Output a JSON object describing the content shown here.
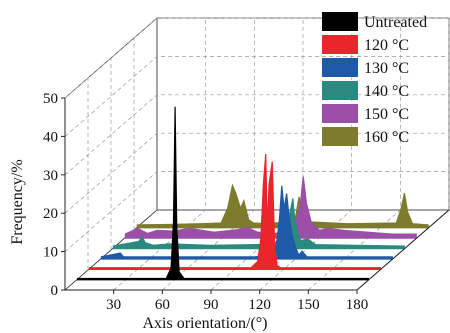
{
  "chart_data": {
    "type": "area",
    "subtype": "3d-waterfall",
    "xlabel": "Axis orientation/(°)",
    "ylabel": "Frequency/%",
    "xlim": [
      0,
      180
    ],
    "ylim": [
      0,
      50
    ],
    "xticks": [
      30,
      60,
      90,
      120,
      150,
      180
    ],
    "yticks": [
      0,
      10,
      20,
      30,
      40,
      50
    ],
    "grid": true,
    "legend_position": "top-right",
    "series": [
      {
        "name": "Untreated",
        "color": "#000000",
        "points": [
          [
            0,
            0.3
          ],
          [
            55,
            0.3
          ],
          [
            58,
            3
          ],
          [
            59.5,
            15
          ],
          [
            60.5,
            45
          ],
          [
            61.5,
            14
          ],
          [
            63,
            2
          ],
          [
            66,
            0.3
          ],
          [
            180,
            0.3
          ]
        ]
      },
      {
        "name": "120 °C",
        "color": "#e8262b",
        "points": [
          [
            0,
            0.4
          ],
          [
            100,
            0.4
          ],
          [
            104,
            2
          ],
          [
            106,
            8
          ],
          [
            107.5,
            22
          ],
          [
            109,
            30
          ],
          [
            110,
            10
          ],
          [
            111,
            22
          ],
          [
            113,
            28
          ],
          [
            114.5,
            6
          ],
          [
            116,
            1
          ],
          [
            118,
            0.4
          ],
          [
            180,
            0.4
          ]
        ]
      },
      {
        "name": "130 °C",
        "color": "#1e5aa8",
        "points": [
          [
            0,
            0.5
          ],
          [
            12,
            1.5
          ],
          [
            14,
            0.5
          ],
          [
            95,
            0.5
          ],
          [
            104,
            1
          ],
          [
            108,
            3
          ],
          [
            110,
            10
          ],
          [
            111.5,
            19
          ],
          [
            113,
            13
          ],
          [
            114.5,
            17
          ],
          [
            116,
            11
          ],
          [
            118,
            6
          ],
          [
            120,
            3
          ],
          [
            122,
            1
          ],
          [
            124,
            2
          ],
          [
            127,
            0.5
          ],
          [
            180,
            0.5
          ]
        ]
      },
      {
        "name": "140 °C",
        "color": "#2a8a80",
        "points": [
          [
            0,
            0.6
          ],
          [
            16,
            1.8
          ],
          [
            18,
            3
          ],
          [
            20,
            1.5
          ],
          [
            25,
            0.8
          ],
          [
            35,
            1.2
          ],
          [
            60,
            0.8
          ],
          [
            90,
            1
          ],
          [
            100,
            1.5
          ],
          [
            104,
            3
          ],
          [
            107,
            6
          ],
          [
            109,
            9
          ],
          [
            111,
            13
          ],
          [
            112,
            8
          ],
          [
            114,
            4
          ],
          [
            116,
            2
          ],
          [
            120,
            2.5
          ],
          [
            125,
            1
          ],
          [
            150,
            0.8
          ],
          [
            180,
            0.6
          ]
        ]
      },
      {
        "name": "150 °C",
        "color": "#9b4fa8",
        "points": [
          [
            0,
            1
          ],
          [
            8,
            2.5
          ],
          [
            14,
            1.2
          ],
          [
            20,
            2
          ],
          [
            30,
            1.8
          ],
          [
            40,
            2.5
          ],
          [
            55,
            1.5
          ],
          [
            70,
            2.2
          ],
          [
            75,
            2.8
          ],
          [
            82,
            1.5
          ],
          [
            94,
            1.2
          ],
          [
            104,
            2.5
          ],
          [
            108,
            8
          ],
          [
            110,
            16
          ],
          [
            112,
            9
          ],
          [
            115,
            4
          ],
          [
            120,
            2
          ],
          [
            125,
            2.5
          ],
          [
            135,
            2
          ],
          [
            150,
            1.5
          ],
          [
            165,
            1
          ],
          [
            180,
            1
          ]
        ]
      },
      {
        "name": "160 °C",
        "color": "#7d7b2d",
        "points": [
          [
            0,
            0.7
          ],
          [
            20,
            0.8
          ],
          [
            40,
            1
          ],
          [
            52,
            1.2
          ],
          [
            56,
            5
          ],
          [
            59,
            11
          ],
          [
            61,
            9
          ],
          [
            64,
            5
          ],
          [
            66,
            7
          ],
          [
            69,
            2
          ],
          [
            72,
            1.2
          ],
          [
            80,
            1
          ],
          [
            94,
            1.5
          ],
          [
            98,
            3
          ],
          [
            100,
            8
          ],
          [
            102,
            4
          ],
          [
            106,
            1.5
          ],
          [
            130,
            1
          ],
          [
            160,
            1.2
          ],
          [
            163,
            5
          ],
          [
            165,
            9
          ],
          [
            167,
            4
          ],
          [
            170,
            1
          ],
          [
            180,
            0.7
          ]
        ]
      }
    ]
  }
}
